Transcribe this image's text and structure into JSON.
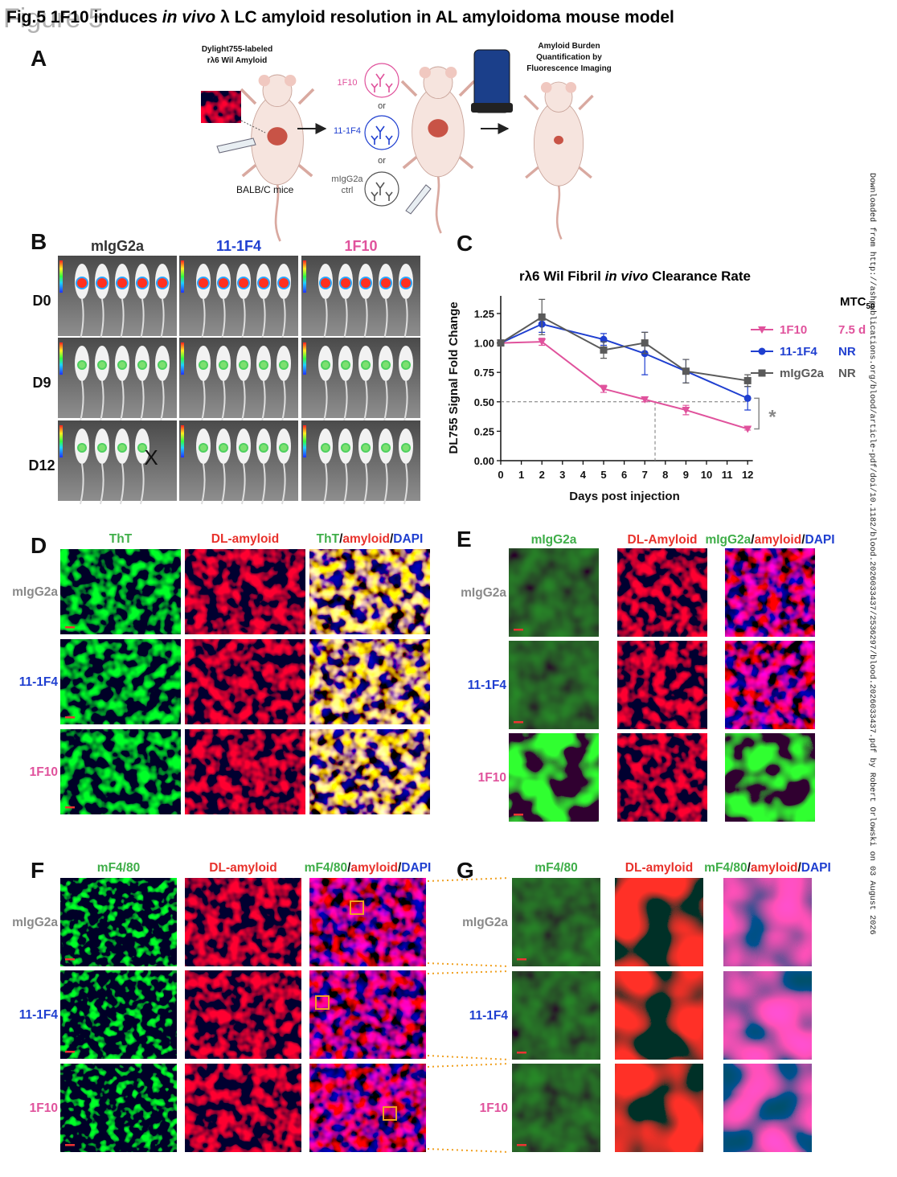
{
  "figure": {
    "watermark": "Figure 5",
    "title": [
      "Fig.5 1F10 induces ",
      "in vivo",
      " λ LC amyloid resolution in AL amyloidoma mouse model"
    ],
    "download_note": "Downloaded from http://ashpublications.org/blood/article-pdf/doi/10.1182/blood.2026033437/2536297/blood.2026033437.pdf by Robert Orlowski on 03 August 2026"
  },
  "panel_a": {
    "label": "A",
    "inoculum": [
      "Dylight755-labeled",
      "rλ6 Wil Amyloid"
    ],
    "mice": "BALB/C mice",
    "treatments": [
      [
        "1F10"
      ],
      [
        "11-1F4"
      ],
      [
        "mIgG2a",
        "ctrl"
      ]
    ],
    "separator": "or",
    "readout": [
      "Amyloid Burden",
      "Quantification by",
      "Fluorescence Imaging"
    ]
  },
  "panel_b": {
    "label": "B",
    "columns": [
      "mIgG2a",
      "11-1F4",
      "1F10"
    ],
    "rows": [
      "D0",
      "D9",
      "D12"
    ],
    "excluded": "X"
  },
  "chart_data": {
    "type": "line",
    "panel_label": "C",
    "title": [
      "rλ6 Wil Fibril ",
      "in vivo",
      " Clearance Rate"
    ],
    "y_label": "DL755 Signal Fold Change",
    "x_label": "Days post injection",
    "x": [
      0,
      2,
      5,
      7,
      9,
      12
    ],
    "xlim": [
      0,
      12.25
    ],
    "xticks": [
      0,
      1,
      2,
      3,
      4,
      5,
      6,
      7,
      8,
      9,
      10,
      11,
      12
    ],
    "ylim": [
      0,
      1.4
    ],
    "yticks": [
      {
        "value": 0,
        "label": "0.00"
      },
      {
        "value": 0.25,
        "label": "0.25"
      },
      {
        "value": 0.5,
        "label": "0.50"
      },
      {
        "value": 0.75,
        "label": "0.75"
      },
      {
        "value": 1,
        "label": "1.00"
      },
      {
        "value": 1.25,
        "label": "1.25"
      }
    ],
    "legend_title": {
      "text": "MTC",
      "subscript": "50"
    },
    "series": [
      {
        "name": "1F10",
        "color": "#e0529c",
        "marker": "triangle-down",
        "mtc50": "7.5 d",
        "values": [
          1.0,
          1.01,
          0.61,
          0.52,
          0.43,
          0.27
        ],
        "errors": [
          0,
          0.03,
          0.03,
          0.02,
          0.04,
          0.01
        ]
      },
      {
        "name": "11-1F4",
        "color": "#1f3fd0",
        "marker": "circle",
        "mtc50": "NR",
        "values": [
          1.0,
          1.16,
          1.03,
          0.91,
          0.76,
          0.53
        ],
        "errors": [
          0,
          0.07,
          0.05,
          0.18,
          0.1,
          0.1
        ]
      },
      {
        "name": "mIgG2a",
        "color": "#5a5a5a",
        "marker": "square",
        "mtc50": "NR",
        "values": [
          1.0,
          1.22,
          0.94,
          1.0,
          0.76,
          0.68
        ],
        "errors": [
          0,
          0.15,
          0.07,
          0.09,
          0.1,
          0.05
        ]
      }
    ],
    "reference": {
      "x": 7.5,
      "y": 0.5
    },
    "significance": "*"
  },
  "panel_d": {
    "label": "D",
    "headers": [
      [
        "ThT"
      ],
      [
        "DL-amyloid"
      ],
      [
        "ThT",
        "/",
        "amyloid",
        "/",
        "DAPI"
      ]
    ],
    "rows": [
      "mIgG2a",
      "11-1F4",
      "1F10"
    ]
  },
  "panel_e": {
    "label": "E",
    "headers": [
      [
        "mIgG2a"
      ],
      [
        "DL-Amyloid"
      ],
      [
        "mIgG2a",
        "/",
        "amyloid",
        "/",
        "DAPI"
      ]
    ],
    "rows": [
      "mIgG2a",
      "11-1F4",
      "1F10"
    ]
  },
  "panel_f": {
    "label": "F",
    "headers": [
      [
        "mF4/80"
      ],
      [
        "DL-amyloid"
      ],
      [
        "mF4/80",
        "/",
        "amyloid",
        "/",
        "DAPI"
      ]
    ],
    "rows": [
      "mIgG2a",
      "11-1F4",
      "1F10"
    ]
  },
  "panel_g": {
    "label": "G",
    "headers": [
      [
        "mF4/80"
      ],
      [
        "DL-amyloid"
      ],
      [
        "mF4/80",
        "/",
        "amyloid",
        "/",
        "DAPI"
      ]
    ],
    "rows": [
      "mIgG2a",
      "11-1F4",
      "1F10"
    ]
  }
}
